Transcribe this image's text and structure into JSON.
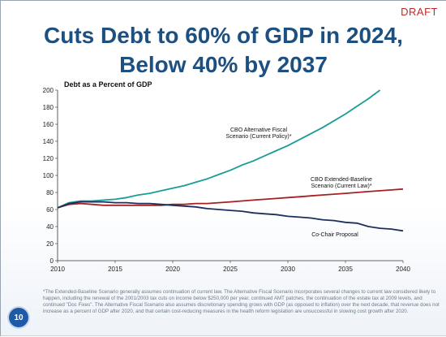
{
  "slide": {
    "draft_label": "DRAFT",
    "title_line1": "Cuts Debt to 60% of GDP in 2024,",
    "title_line2": "Below 40% by 2037",
    "footnote": "*The Extended-Baseline Scenario generally assumes continuation of current law. The Alternative Fiscal Scenario incorporates several changes to current law considered likely to happen, including the renewal of the 2001/2003 tax cuts on income below $250,000 per year, continued AMT patches, the continuation of the estate tax at 2009 levels, and continued \"Doc Fixes\". The Alternative Fiscal Scenario also assumes discretionary spending grows with GDP (as opposed to inflation) over the next decade, that revenue does not increase as a percent of GDP after 2020, and that certain cost-reducing measures in the health reform legislation are unsuccessful in slowing cost growth after 2020.",
    "page_number": "10",
    "colors": {
      "title": "#1d4f80",
      "draft": "#c0282a",
      "alternative": "#1a9c96",
      "baseline": "#a8201f",
      "cochair": "#1c2f5e"
    }
  },
  "chart_data": {
    "type": "line",
    "title": "Debt as a Percent of GDP",
    "xlabel": "",
    "ylabel": "",
    "xlim": [
      2010,
      2040
    ],
    "ylim": [
      0,
      200
    ],
    "xticks": [
      2010,
      2015,
      2020,
      2025,
      2030,
      2035,
      2040
    ],
    "yticks": [
      0,
      20,
      40,
      60,
      80,
      100,
      120,
      140,
      160,
      180,
      200
    ],
    "grid": false,
    "series": [
      {
        "name": "CBO Alternative Fiscal Scenario (Current Policy)*",
        "label_lines": [
          "CBO Alternative Fiscal",
          "Scenario (Current Policy)*"
        ],
        "color_key": "alternative",
        "points": [
          [
            2010,
            62
          ],
          [
            2011,
            68
          ],
          [
            2012,
            70
          ],
          [
            2013,
            70
          ],
          [
            2014,
            71
          ],
          [
            2015,
            72
          ],
          [
            2016,
            74
          ],
          [
            2017,
            77
          ],
          [
            2018,
            79
          ],
          [
            2019,
            82
          ],
          [
            2020,
            85
          ],
          [
            2021,
            88
          ],
          [
            2022,
            92
          ],
          [
            2023,
            96
          ],
          [
            2024,
            101
          ],
          [
            2025,
            106
          ],
          [
            2026,
            112
          ],
          [
            2027,
            117
          ],
          [
            2028,
            123
          ],
          [
            2029,
            129
          ],
          [
            2030,
            135
          ],
          [
            2031,
            142
          ],
          [
            2032,
            149
          ],
          [
            2033,
            156
          ],
          [
            2034,
            164
          ],
          [
            2035,
            172
          ],
          [
            2036,
            181
          ],
          [
            2037,
            190
          ],
          [
            2038,
            200
          ]
        ]
      },
      {
        "name": "CBO Extended-Baseline Scenario (Current Law)*",
        "label_lines": [
          "CBO Extended-Baseline",
          "Scenario (Current Law)*"
        ],
        "color_key": "baseline",
        "points": [
          [
            2010,
            62
          ],
          [
            2011,
            66
          ],
          [
            2012,
            67
          ],
          [
            2013,
            66
          ],
          [
            2014,
            65
          ],
          [
            2015,
            65
          ],
          [
            2016,
            65
          ],
          [
            2017,
            65
          ],
          [
            2018,
            65
          ],
          [
            2019,
            65
          ],
          [
            2020,
            66
          ],
          [
            2021,
            66
          ],
          [
            2022,
            67
          ],
          [
            2023,
            67
          ],
          [
            2024,
            68
          ],
          [
            2025,
            69
          ],
          [
            2026,
            70
          ],
          [
            2027,
            71
          ],
          [
            2028,
            72
          ],
          [
            2029,
            73
          ],
          [
            2030,
            74
          ],
          [
            2031,
            75
          ],
          [
            2032,
            76
          ],
          [
            2033,
            77
          ],
          [
            2034,
            78
          ],
          [
            2035,
            79
          ],
          [
            2036,
            80
          ],
          [
            2037,
            81
          ],
          [
            2038,
            82
          ],
          [
            2039,
            83
          ],
          [
            2040,
            84
          ]
        ]
      },
      {
        "name": "Co-Chair Proposal",
        "label_lines": [
          "Co-Chair Proposal"
        ],
        "color_key": "cochair",
        "points": [
          [
            2010,
            62
          ],
          [
            2011,
            67
          ],
          [
            2012,
            69
          ],
          [
            2013,
            69
          ],
          [
            2014,
            69
          ],
          [
            2015,
            68
          ],
          [
            2016,
            68
          ],
          [
            2017,
            67
          ],
          [
            2018,
            67
          ],
          [
            2019,
            66
          ],
          [
            2020,
            65
          ],
          [
            2021,
            64
          ],
          [
            2022,
            63
          ],
          [
            2023,
            61
          ],
          [
            2024,
            60
          ],
          [
            2025,
            59
          ],
          [
            2026,
            58
          ],
          [
            2027,
            56
          ],
          [
            2028,
            55
          ],
          [
            2029,
            54
          ],
          [
            2030,
            52
          ],
          [
            2031,
            51
          ],
          [
            2032,
            50
          ],
          [
            2033,
            48
          ],
          [
            2034,
            47
          ],
          [
            2035,
            45
          ],
          [
            2036,
            44
          ],
          [
            2037,
            40
          ],
          [
            2038,
            38
          ],
          [
            2039,
            37
          ],
          [
            2040,
            35
          ]
        ]
      }
    ]
  }
}
